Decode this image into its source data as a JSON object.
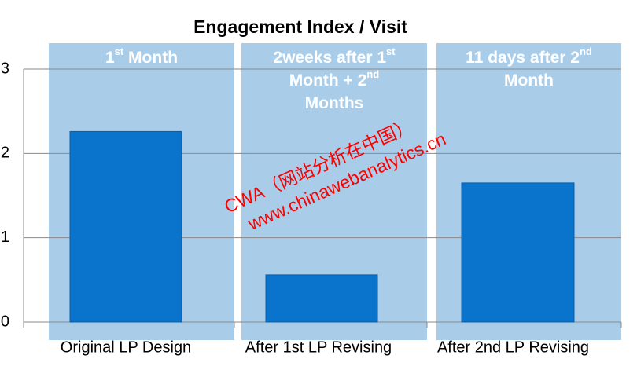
{
  "chart_data": {
    "type": "bar",
    "title": "Engagement Index / Visit",
    "categories": [
      "Original LP Design",
      "After 1st LP Revising",
      "After 2nd LP Revising"
    ],
    "values": [
      2.26,
      0.56,
      1.65
    ],
    "color": "#0a73cc",
    "panel_color": "#a9cde9",
    "ylim": [
      0,
      3
    ],
    "yticks": [
      0,
      1,
      2,
      3
    ],
    "grid": true,
    "panel_labels": [
      [
        [
          {
            "text": "1"
          },
          {
            "text": "st",
            "sup": true
          },
          {
            "text": " Month"
          }
        ]
      ],
      [
        [
          {
            "text": "2weeks after 1"
          },
          {
            "text": "st",
            "sup": true
          }
        ],
        [
          {
            "text": "Month + 2"
          },
          {
            "text": "nd",
            "sup": true
          }
        ],
        [
          {
            "text": "Months"
          }
        ]
      ],
      [
        [
          {
            "text": "11 days after 2"
          },
          {
            "text": "nd",
            "sup": true
          }
        ],
        [
          {
            "text": "Month"
          }
        ]
      ]
    ],
    "annotations": [
      "CWA（网站分析在中国）",
      "www.chinawebanalytics.cn"
    ]
  }
}
